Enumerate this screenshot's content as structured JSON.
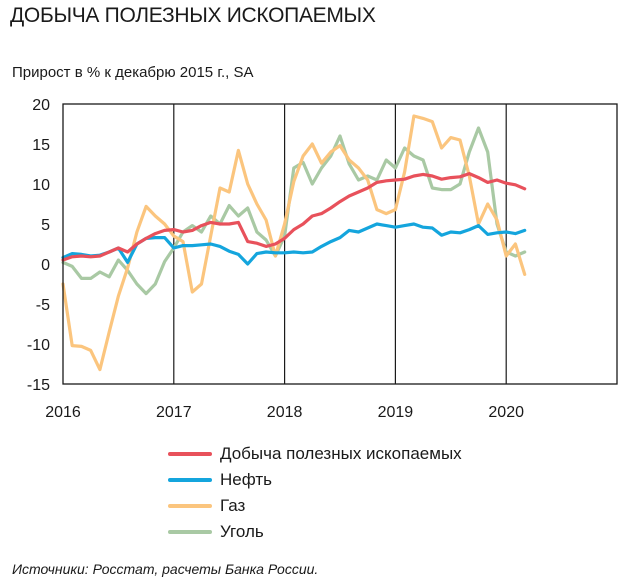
{
  "header": {
    "title": "ДОБЫЧА ПОЛЕЗНЫХ ИСКОПАЕМЫХ",
    "subtitle": "Прирост в % к декабрю 2015 г., SA"
  },
  "footer": {
    "source": "Источники: Росстат, расчеты Банка России."
  },
  "chart_data": {
    "type": "line",
    "title": "ДОБЫЧА ПОЛЕЗНЫХ ИСКОПАЕМЫХ",
    "ylabel": "Прирост в % к декабрю 2015 г., SA",
    "ylim": [
      -15,
      20
    ],
    "xlim": [
      2016.0,
      2021.0
    ],
    "y_ticks": [
      "20",
      "15",
      "10",
      "5",
      "0",
      "-5",
      "-10",
      "-15"
    ],
    "x_ticks": [
      "2016",
      "2017",
      "2018",
      "2019",
      "2020"
    ],
    "grid": "vertical",
    "legend_position": "bottom",
    "series": [
      {
        "name": "Добыча полезных ископаемых",
        "color": "#e8515b",
        "x": [
          2016.0,
          2016.083,
          2016.167,
          2016.25,
          2016.333,
          2016.417,
          2016.5,
          2016.583,
          2016.667,
          2016.75,
          2016.833,
          2016.917,
          2017.0,
          2017.083,
          2017.167,
          2017.25,
          2017.333,
          2017.417,
          2017.5,
          2017.583,
          2017.667,
          2017.75,
          2017.833,
          2017.917,
          2018.0,
          2018.083,
          2018.167,
          2018.25,
          2018.333,
          2018.417,
          2018.5,
          2018.583,
          2018.667,
          2018.75,
          2018.833,
          2018.917,
          2019.0,
          2019.083,
          2019.167,
          2019.25,
          2019.333,
          2019.417,
          2019.5,
          2019.583,
          2019.667,
          2019.75,
          2019.833,
          2019.917,
          2020.0,
          2020.083,
          2020.167
        ],
        "values": [
          0.5,
          0.9,
          1.0,
          0.9,
          1.0,
          1.5,
          2.0,
          1.5,
          2.5,
          3.2,
          3.8,
          4.2,
          4.3,
          4.0,
          4.2,
          4.8,
          5.2,
          5.0,
          5.0,
          5.2,
          2.8,
          2.6,
          2.2,
          2.5,
          3.2,
          4.3,
          5.0,
          6.0,
          6.3,
          7.0,
          7.8,
          8.5,
          9.0,
          9.5,
          10.2,
          10.4,
          10.5,
          10.6,
          11.0,
          11.2,
          11.0,
          10.6,
          10.8,
          10.9,
          11.3,
          10.8,
          10.2,
          10.5,
          10.1,
          9.9,
          9.4
        ]
      },
      {
        "name": "Нефть",
        "color": "#14a5dd",
        "x": [
          2016.0,
          2016.083,
          2016.167,
          2016.25,
          2016.333,
          2016.417,
          2016.5,
          2016.583,
          2016.667,
          2016.75,
          2016.833,
          2016.917,
          2017.0,
          2017.083,
          2017.167,
          2017.25,
          2017.333,
          2017.417,
          2017.5,
          2017.583,
          2017.667,
          2017.75,
          2017.833,
          2017.917,
          2018.0,
          2018.083,
          2018.167,
          2018.25,
          2018.333,
          2018.417,
          2018.5,
          2018.583,
          2018.667,
          2018.75,
          2018.833,
          2018.917,
          2019.0,
          2019.083,
          2019.167,
          2019.25,
          2019.333,
          2019.417,
          2019.5,
          2019.583,
          2019.667,
          2019.75,
          2019.833,
          2019.917,
          2020.0,
          2020.083,
          2020.167
        ],
        "values": [
          0.8,
          1.3,
          1.2,
          1.0,
          1.1,
          1.5,
          2.0,
          0.2,
          2.5,
          3.2,
          3.3,
          3.3,
          2.0,
          2.3,
          2.3,
          2.4,
          2.5,
          2.2,
          1.6,
          1.2,
          0.0,
          1.3,
          1.5,
          1.4,
          1.4,
          1.5,
          1.4,
          1.5,
          2.2,
          2.8,
          3.3,
          4.2,
          4.0,
          4.5,
          5.0,
          4.8,
          4.6,
          4.8,
          5.0,
          4.6,
          4.5,
          3.6,
          4.0,
          3.9,
          4.3,
          4.8,
          3.7,
          3.9,
          4.0,
          3.8,
          4.2
        ]
      },
      {
        "name": "Газ",
        "color": "#fbc57e",
        "x": [
          2016.0,
          2016.083,
          2016.167,
          2016.25,
          2016.333,
          2016.417,
          2016.5,
          2016.583,
          2016.667,
          2016.75,
          2016.833,
          2016.917,
          2017.0,
          2017.083,
          2017.167,
          2017.25,
          2017.333,
          2017.417,
          2017.5,
          2017.583,
          2017.667,
          2017.75,
          2017.833,
          2017.917,
          2018.0,
          2018.083,
          2018.167,
          2018.25,
          2018.333,
          2018.417,
          2018.5,
          2018.583,
          2018.667,
          2018.75,
          2018.833,
          2018.917,
          2019.0,
          2019.083,
          2019.167,
          2019.25,
          2019.333,
          2019.417,
          2019.5,
          2019.583,
          2019.667,
          2019.75,
          2019.833,
          2019.917,
          2020.0,
          2020.083,
          2020.167
        ],
        "values": [
          -2.5,
          -10.2,
          -10.3,
          -10.8,
          -13.2,
          -8.5,
          -4.0,
          -0.5,
          4.0,
          7.2,
          6.0,
          5.0,
          3.5,
          2.8,
          -3.5,
          -2.5,
          3.5,
          9.5,
          9.0,
          14.2,
          10.0,
          7.5,
          5.5,
          1.0,
          5.0,
          10.3,
          13.5,
          15.0,
          12.6,
          14.0,
          14.8,
          13.0,
          12.0,
          10.5,
          6.8,
          6.3,
          6.8,
          11.5,
          18.5,
          18.2,
          17.8,
          14.5,
          15.8,
          15.5,
          11.0,
          5.0,
          7.5,
          5.5,
          1.0,
          2.5,
          -1.3
        ]
      },
      {
        "name": "Уголь",
        "color": "#a9c9a4",
        "x": [
          2016.0,
          2016.083,
          2016.167,
          2016.25,
          2016.333,
          2016.417,
          2016.5,
          2016.583,
          2016.667,
          2016.75,
          2016.833,
          2016.917,
          2017.0,
          2017.083,
          2017.167,
          2017.25,
          2017.333,
          2017.417,
          2017.5,
          2017.583,
          2017.667,
          2017.75,
          2017.833,
          2017.917,
          2018.0,
          2018.083,
          2018.167,
          2018.25,
          2018.333,
          2018.417,
          2018.5,
          2018.583,
          2018.667,
          2018.75,
          2018.833,
          2018.917,
          2019.0,
          2019.083,
          2019.167,
          2019.25,
          2019.333,
          2019.417,
          2019.5,
          2019.583,
          2019.667,
          2019.75,
          2019.833,
          2019.917,
          2020.0,
          2020.083,
          2020.167
        ],
        "values": [
          0.2,
          -0.3,
          -1.8,
          -1.8,
          -1.0,
          -1.6,
          0.5,
          -0.8,
          -2.5,
          -3.7,
          -2.5,
          0.3,
          2.0,
          4.0,
          4.8,
          4.0,
          6.0,
          5.0,
          7.3,
          6.0,
          7.0,
          4.0,
          3.0,
          1.0,
          3.5,
          12.0,
          12.7,
          10.0,
          12.0,
          13.5,
          16.0,
          12.5,
          10.5,
          11.0,
          10.5,
          13.0,
          12.0,
          14.5,
          13.5,
          13.0,
          9.5,
          9.3,
          9.3,
          10.0,
          14.0,
          17.0,
          14.0,
          5.0,
          1.5,
          1.0,
          1.5
        ]
      }
    ]
  }
}
